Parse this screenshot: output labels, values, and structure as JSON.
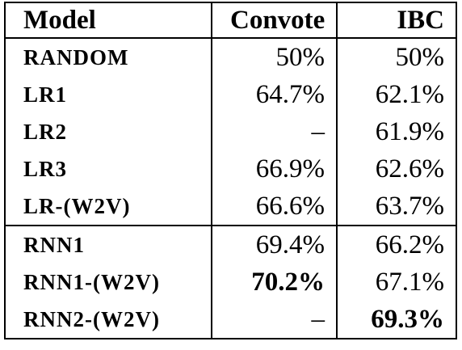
{
  "table": {
    "header": [
      "Model",
      "Convote",
      "IBC"
    ],
    "body": [
      [
        [
          "RANDOM",
          "50%",
          "50%"
        ],
        [
          "LR1",
          "64.7%",
          "62.1%"
        ],
        [
          "LR2",
          "–",
          "61.9%"
        ],
        [
          "LR3",
          "66.9%",
          "62.6%"
        ],
        [
          "LR-(W2V)",
          "66.6%",
          "63.7%"
        ]
      ],
      [
        [
          "RNN1",
          "69.4%",
          "66.2%"
        ],
        [
          "RNN1-(W2V)",
          {
            "text": "70.2%",
            "bold": true
          },
          "67.1%"
        ],
        [
          "RNN2-(W2V)",
          "–",
          {
            "text": "69.3%",
            "bold": true
          }
        ]
      ]
    ]
  }
}
